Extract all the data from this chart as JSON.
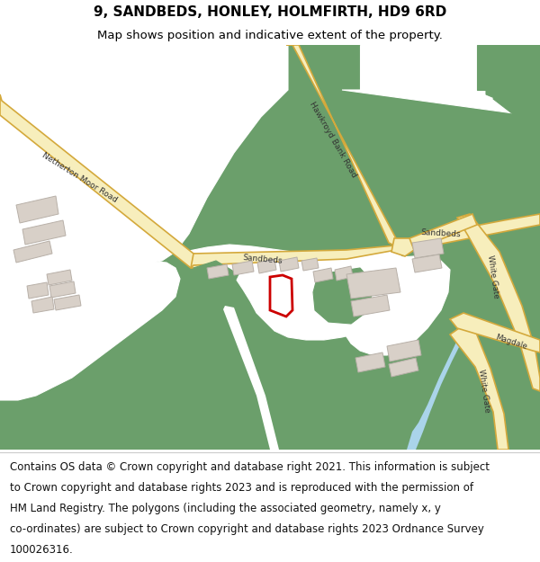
{
  "title": "9, SANDBEDS, HONLEY, HOLMFIRTH, HD9 6RD",
  "subtitle": "Map shows position and indicative extent of the property.",
  "footer_lines": [
    "Contains OS data © Crown copyright and database right 2021. This information is subject",
    "to Crown copyright and database rights 2023 and is reproduced with the permission of",
    "HM Land Registry. The polygons (including the associated geometry, namely x, y",
    "co-ordinates) are subject to Crown copyright and database rights 2023 Ordnance Survey",
    "100026316."
  ],
  "title_fontsize": 11,
  "subtitle_fontsize": 9.5,
  "footer_fontsize": 8.5,
  "map_bg": "#f5f2ec",
  "green_color": "#6b9f6b",
  "road_fill": "#f7eebc",
  "road_edge": "#d4a93c",
  "building_fill": "#d8d0c8",
  "building_edge": "#b8b0a8",
  "water_color": "#aad4ea",
  "red_color": "#cc0000",
  "white_color": "#ffffff",
  "text_color": "#333333"
}
